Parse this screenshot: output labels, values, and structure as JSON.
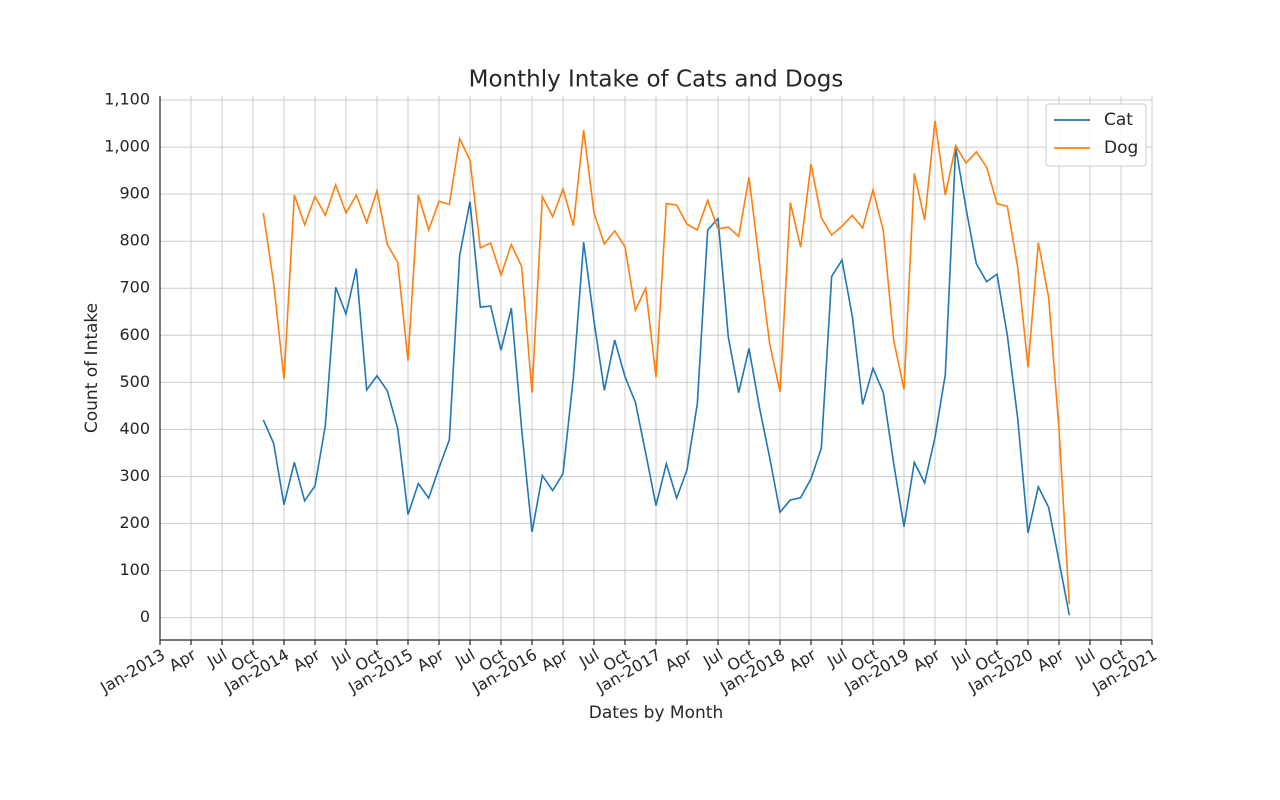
{
  "chart_data": {
    "type": "line",
    "title": "Monthly Intake of Cats and Dogs",
    "xlabel": "Dates by Month",
    "ylabel": "Count of Intake",
    "x": [
      "2013-11",
      "2013-12",
      "2014-01",
      "2014-02",
      "2014-03",
      "2014-04",
      "2014-05",
      "2014-06",
      "2014-07",
      "2014-08",
      "2014-09",
      "2014-10",
      "2014-11",
      "2014-12",
      "2015-01",
      "2015-02",
      "2015-03",
      "2015-04",
      "2015-05",
      "2015-06",
      "2015-07",
      "2015-08",
      "2015-09",
      "2015-10",
      "2015-11",
      "2015-12",
      "2016-01",
      "2016-02",
      "2016-03",
      "2016-04",
      "2016-05",
      "2016-06",
      "2016-07",
      "2016-08",
      "2016-09",
      "2016-10",
      "2016-11",
      "2016-12",
      "2017-01",
      "2017-02",
      "2017-03",
      "2017-04",
      "2017-05",
      "2017-06",
      "2017-07",
      "2017-08",
      "2017-09",
      "2017-10",
      "2017-11",
      "2017-12",
      "2018-01",
      "2018-02",
      "2018-03",
      "2018-04",
      "2018-05",
      "2018-06",
      "2018-07",
      "2018-08",
      "2018-09",
      "2018-10",
      "2018-11",
      "2018-12",
      "2019-01",
      "2019-02",
      "2019-03",
      "2019-04",
      "2019-05",
      "2019-06",
      "2019-07",
      "2019-08",
      "2019-09",
      "2019-10",
      "2019-11",
      "2019-12",
      "2020-01",
      "2020-02",
      "2020-03",
      "2020-04",
      "2020-05"
    ],
    "series": [
      {
        "name": "Cat",
        "color": "#1f77b4",
        "values": [
          420,
          370,
          240,
          330,
          248,
          280,
          408,
          702,
          645,
          742,
          484,
          514,
          482,
          402,
          219,
          285,
          254,
          318,
          378,
          770,
          884,
          660,
          662,
          568,
          658,
          400,
          182,
          302,
          270,
          306,
          510,
          798,
          630,
          483,
          590,
          512,
          458,
          350,
          238,
          327,
          254,
          314,
          455,
          824,
          848,
          596,
          478,
          572,
          448,
          340,
          224,
          250,
          255,
          295,
          360,
          725,
          760,
          640,
          453,
          530,
          478,
          328,
          193,
          330,
          286,
          383,
          517,
          1000,
          870,
          752,
          714,
          730,
          600,
          424,
          180,
          278,
          234,
          120,
          5
        ]
      },
      {
        "name": "Dog",
        "color": "#ff7f0e",
        "values": [
          860,
          710,
          507,
          898,
          835,
          895,
          855,
          920,
          860,
          898,
          840,
          907,
          793,
          755,
          546,
          898,
          824,
          885,
          878,
          1018,
          972,
          786,
          796,
          728,
          793,
          746,
          478,
          895,
          852,
          911,
          833,
          1036,
          860,
          794,
          822,
          788,
          653,
          700,
          511,
          880,
          877,
          836,
          824,
          887,
          826,
          830,
          810,
          936,
          756,
          582,
          480,
          882,
          787,
          964,
          850,
          813,
          832,
          855,
          828,
          909,
          822,
          590,
          485,
          944,
          845,
          1056,
          898,
          1003,
          966,
          990,
          957,
          880,
          874,
          745,
          532,
          797,
          680,
          400,
          28
        ]
      }
    ],
    "xlim": [
      "2013-01",
      "2021-01"
    ],
    "xticks": [
      {
        "value": "2013-01",
        "label": "Jan-2013"
      },
      {
        "value": "2013-04",
        "label": "Apr"
      },
      {
        "value": "2013-07",
        "label": "Jul"
      },
      {
        "value": "2013-10",
        "label": "Oct"
      },
      {
        "value": "2014-01",
        "label": "Jan-2014"
      },
      {
        "value": "2014-04",
        "label": "Apr"
      },
      {
        "value": "2014-07",
        "label": "Jul"
      },
      {
        "value": "2014-10",
        "label": "Oct"
      },
      {
        "value": "2015-01",
        "label": "Jan-2015"
      },
      {
        "value": "2015-04",
        "label": "Apr"
      },
      {
        "value": "2015-07",
        "label": "Jul"
      },
      {
        "value": "2015-10",
        "label": "Oct"
      },
      {
        "value": "2016-01",
        "label": "Jan-2016"
      },
      {
        "value": "2016-04",
        "label": "Apr"
      },
      {
        "value": "2016-07",
        "label": "Jul"
      },
      {
        "value": "2016-10",
        "label": "Oct"
      },
      {
        "value": "2017-01",
        "label": "Jan-2017"
      },
      {
        "value": "2017-04",
        "label": "Apr"
      },
      {
        "value": "2017-07",
        "label": "Jul"
      },
      {
        "value": "2017-10",
        "label": "Oct"
      },
      {
        "value": "2018-01",
        "label": "Jan-2018"
      },
      {
        "value": "2018-04",
        "label": "Apr"
      },
      {
        "value": "2018-07",
        "label": "Jul"
      },
      {
        "value": "2018-10",
        "label": "Oct"
      },
      {
        "value": "2019-01",
        "label": "Jan-2019"
      },
      {
        "value": "2019-04",
        "label": "Apr"
      },
      {
        "value": "2019-07",
        "label": "Jul"
      },
      {
        "value": "2019-10",
        "label": "Oct"
      },
      {
        "value": "2020-01",
        "label": "Jan-2020"
      },
      {
        "value": "2020-04",
        "label": "Apr"
      },
      {
        "value": "2020-07",
        "label": "Jul"
      },
      {
        "value": "2020-10",
        "label": "Oct"
      },
      {
        "value": "2021-01",
        "label": "Jan-2021"
      }
    ],
    "ylim": [
      -47.6,
      1108.6
    ],
    "yticks": [
      0,
      100,
      200,
      300,
      400,
      500,
      600,
      700,
      800,
      900,
      {
        "value": 1000,
        "label": "1,000"
      },
      {
        "value": 1100,
        "label": "1,100"
      }
    ],
    "grid": true,
    "legend": "upper right"
  }
}
